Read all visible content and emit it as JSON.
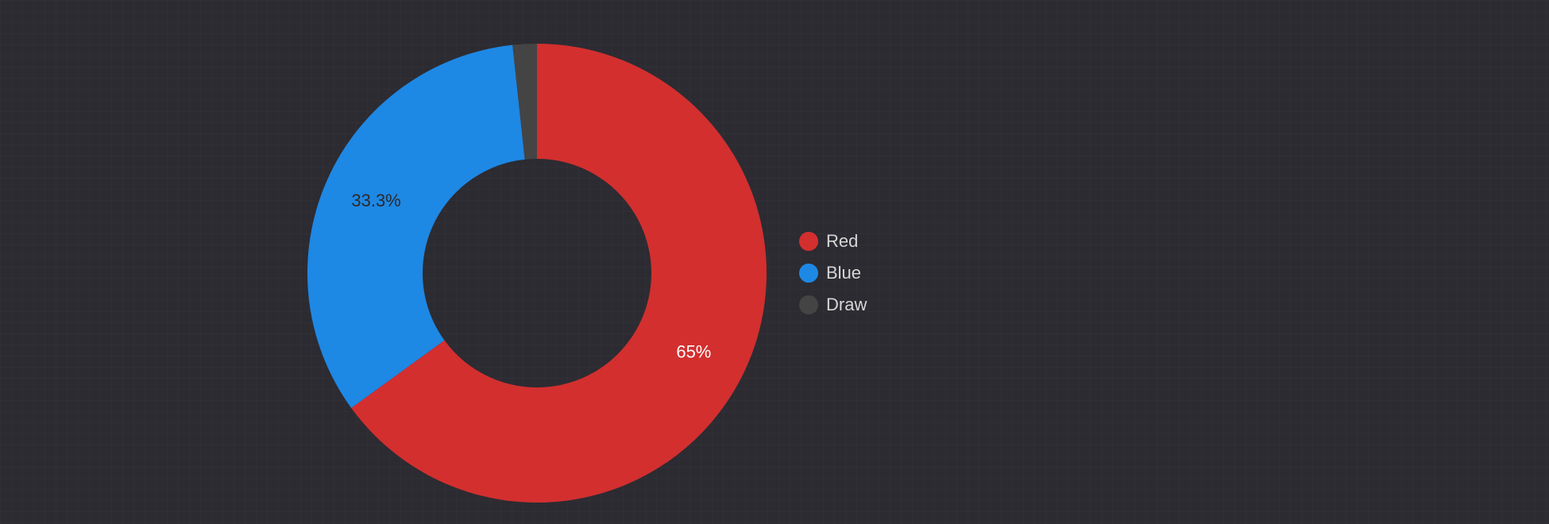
{
  "chart_data": {
    "type": "pie",
    "donut": true,
    "categories": [
      "Red",
      "Blue",
      "Draw"
    ],
    "values": [
      65,
      33.3,
      1.7
    ],
    "data_labels": [
      "65%",
      "33.3%",
      ""
    ],
    "colors": [
      "#d32f2f",
      "#1e88e5",
      "#444444"
    ],
    "label_colors": [
      "#ffffff",
      "#2a2a2a",
      "#ffffff"
    ],
    "legend_position": "right",
    "background_color": "#2c2b31"
  },
  "legend": {
    "items": [
      {
        "label": "Red",
        "color": "#d32f2f"
      },
      {
        "label": "Blue",
        "color": "#1e88e5"
      },
      {
        "label": "Draw",
        "color": "#444444"
      }
    ]
  }
}
